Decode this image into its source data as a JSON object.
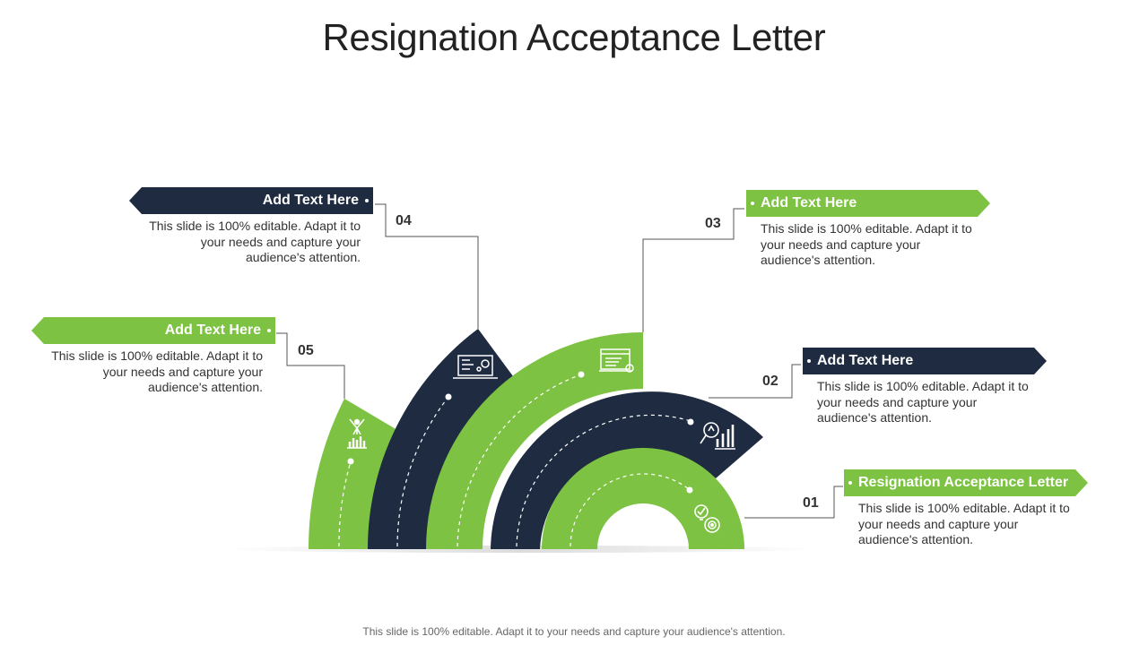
{
  "title": "Resignation Acceptance Letter",
  "footer": "This slide is 100% editable. Adapt it to your needs and capture your audience's attention.",
  "colors": {
    "green": "#7dc242",
    "navy": "#1e2b40",
    "connector": "#555555"
  },
  "items": [
    {
      "number": "01",
      "heading": "Resignation Acceptance Letter",
      "text": "This slide is 100% editable. Adapt it to your needs and capture your audience's attention.",
      "icon": "target-idea-icon",
      "color": "green"
    },
    {
      "number": "02",
      "heading": "Add Text Here",
      "text": "This slide is 100% editable. Adapt it to your needs and capture your audience's attention.",
      "icon": "analytics-chart-icon",
      "color": "navy"
    },
    {
      "number": "03",
      "heading": "Add Text Here",
      "text": "This slide is 100% editable. Adapt it to your needs and capture your audience's attention.",
      "icon": "document-settings-icon",
      "color": "green"
    },
    {
      "number": "04",
      "heading": "Add Text Here",
      "text": "This slide is 100% editable. Adapt it to your needs and capture your audience's attention.",
      "icon": "laptop-settings-icon",
      "color": "navy"
    },
    {
      "number": "05",
      "heading": "Add Text Here",
      "text": "This slide is 100% editable. Adapt it to your needs and capture your audience's attention.",
      "icon": "success-person-icon",
      "color": "green"
    }
  ]
}
